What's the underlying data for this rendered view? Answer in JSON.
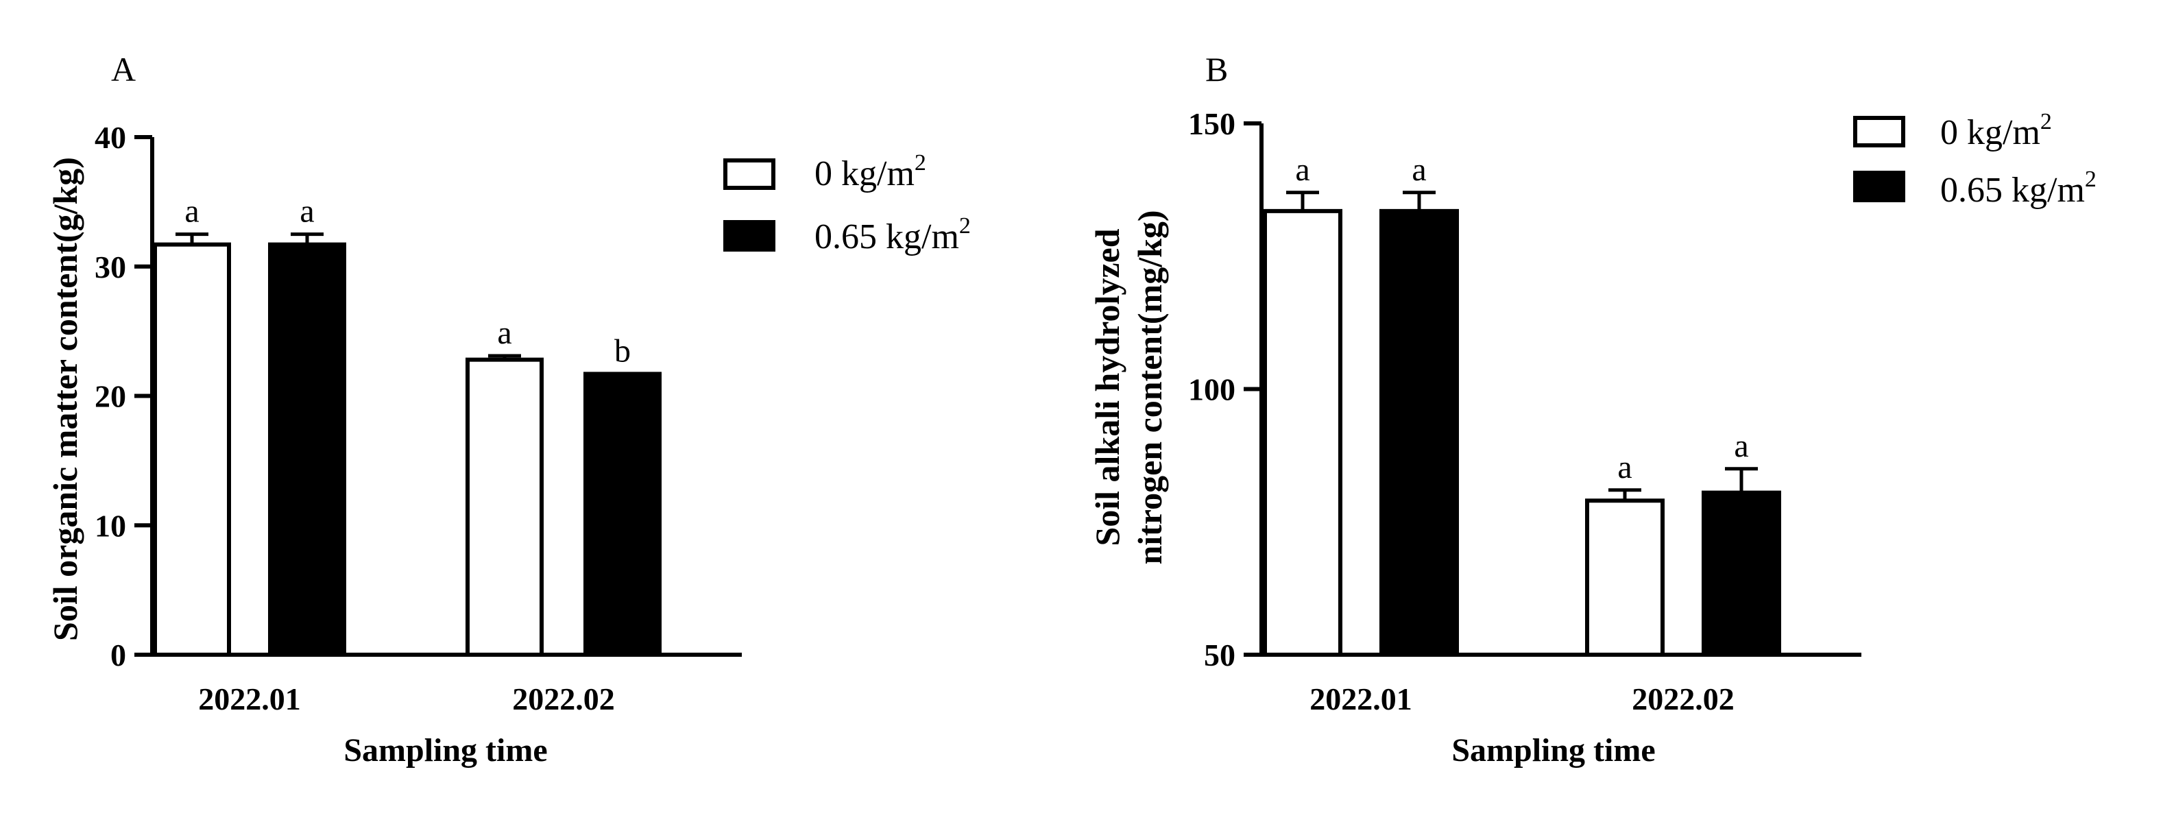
{
  "chart_data": [
    {
      "panel": "A",
      "type": "bar",
      "title": "",
      "xlabel": "Sampling time",
      "ylabel": "Soil organic matter content(g/kg)",
      "ylim": [
        0,
        40
      ],
      "yticks": [
        0,
        10,
        20,
        30,
        40
      ],
      "categories": [
        "2022.01",
        "2022.02"
      ],
      "grid": false,
      "legend_position": "top-right",
      "series": [
        {
          "name": "0 kg/m2",
          "fill": "#ffffff",
          "values": [
            31.7,
            22.8
          ],
          "errors": [
            0.8,
            0.3
          ],
          "letters": [
            "a",
            "a"
          ]
        },
        {
          "name": "0.65 kg/m2",
          "fill": "#000000",
          "values": [
            31.7,
            21.7
          ],
          "errors": [
            0.8,
            0.0
          ],
          "letters": [
            "a",
            "b"
          ]
        }
      ]
    },
    {
      "panel": "B",
      "type": "bar",
      "title": "",
      "xlabel": "Sampling time",
      "ylabel_lines": [
        "Soil alkali hydrolyzed",
        "nitrogen content(mg/kg)"
      ],
      "ylim": [
        50,
        150
      ],
      "yticks": [
        50,
        100,
        150
      ],
      "categories": [
        "2022.01",
        "2022.02"
      ],
      "grid": false,
      "legend_position": "top-right",
      "series": [
        {
          "name": "0 kg/m2",
          "fill": "#ffffff",
          "values": [
            133.5,
            79.0
          ],
          "errors": [
            3.5,
            2.0
          ],
          "letters": [
            "a",
            "a"
          ]
        },
        {
          "name": "0.65 kg/m2",
          "fill": "#000000",
          "values": [
            133.5,
            80.5
          ],
          "errors": [
            3.5,
            4.5
          ],
          "letters": [
            "a",
            "a"
          ]
        }
      ]
    }
  ]
}
